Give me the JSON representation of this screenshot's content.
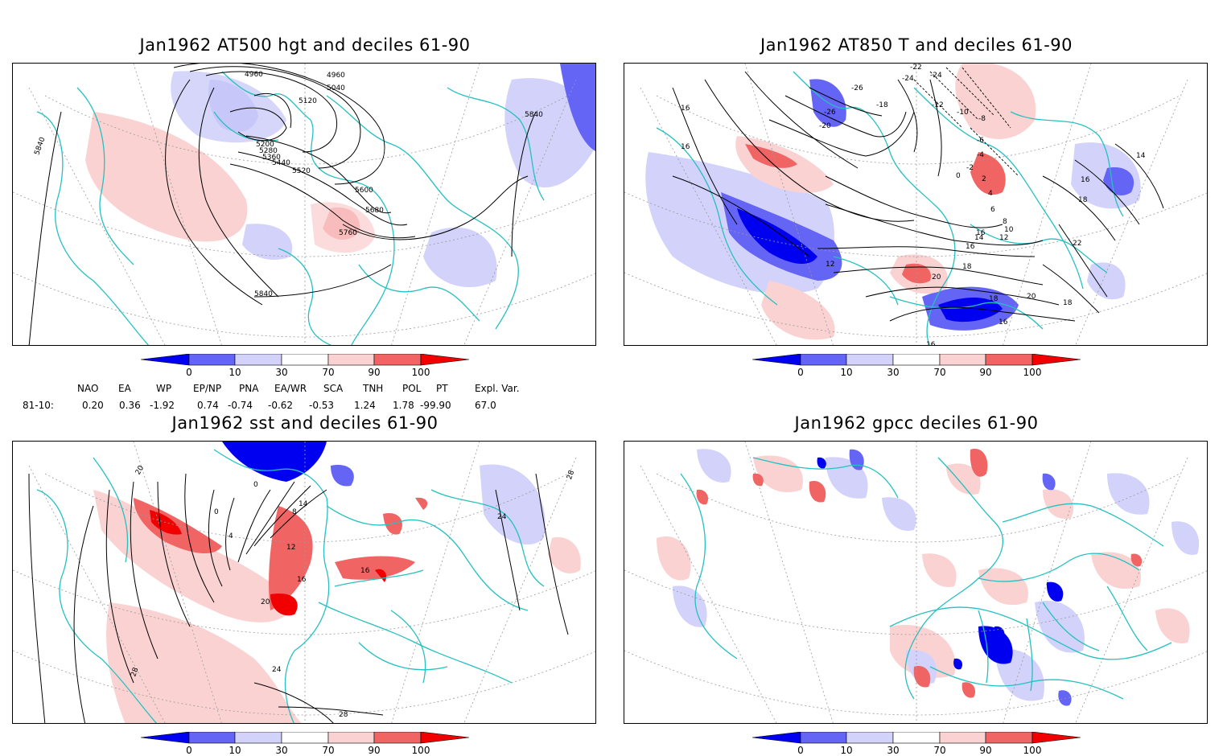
{
  "panels": {
    "hgt500": {
      "title": "Jan1962 AT500 hgt and deciles 61-90",
      "contour_labels": [
        "4960",
        "4960",
        "5040",
        "5120",
        "5200",
        "5280",
        "5360",
        "5440",
        "5520",
        "5600",
        "5680",
        "5760",
        "5840",
        "5840",
        "5840"
      ]
    },
    "t850": {
      "title": "Jan1962 AT850 T and deciles 61-90",
      "contour_labels": [
        "-22",
        "-24",
        "-26",
        "-24",
        "-26",
        "-18",
        "-12",
        "-10",
        "-8",
        "-6",
        "-4",
        "-2",
        "0",
        "2",
        "4",
        "6",
        "8",
        "10",
        "12",
        "12",
        "14",
        "16",
        "16",
        "16",
        "14",
        "16",
        "18",
        "18",
        "20",
        "22",
        "20",
        "18",
        "16",
        "16",
        "16",
        "18",
        "-20"
      ]
    },
    "sst": {
      "title": "Jan1962 sst and deciles 61-90",
      "contour_labels": [
        "20",
        "0",
        "0",
        "4",
        "8",
        "12",
        "14",
        "16",
        "16",
        "20",
        "24",
        "24",
        "28",
        "28",
        "28"
      ]
    },
    "gpcc": {
      "title": "Jan1962 gpcc deciles 61-90"
    }
  },
  "colorbar": {
    "ticks": [
      "0",
      "10",
      "30",
      "70",
      "90",
      "100"
    ],
    "colors": [
      "#0000f0",
      "#6464f5",
      "#d2d2fa",
      "#ffffff",
      "#fad2d2",
      "#f06464",
      "#f00000"
    ]
  },
  "indices": {
    "row_label": "81-10:",
    "names": [
      "NAO",
      "EA",
      "WP",
      "EP/NP",
      "PNA",
      "EA/WR",
      "SCA",
      "TNH",
      "POL",
      "PT",
      "Expl. Var."
    ],
    "values": [
      "0.20",
      "0.36",
      "-1.92",
      "0.74",
      "-0.74",
      "-0.62",
      "-0.53",
      "1.24",
      "1.78",
      "-99.90",
      "67.0"
    ]
  }
}
